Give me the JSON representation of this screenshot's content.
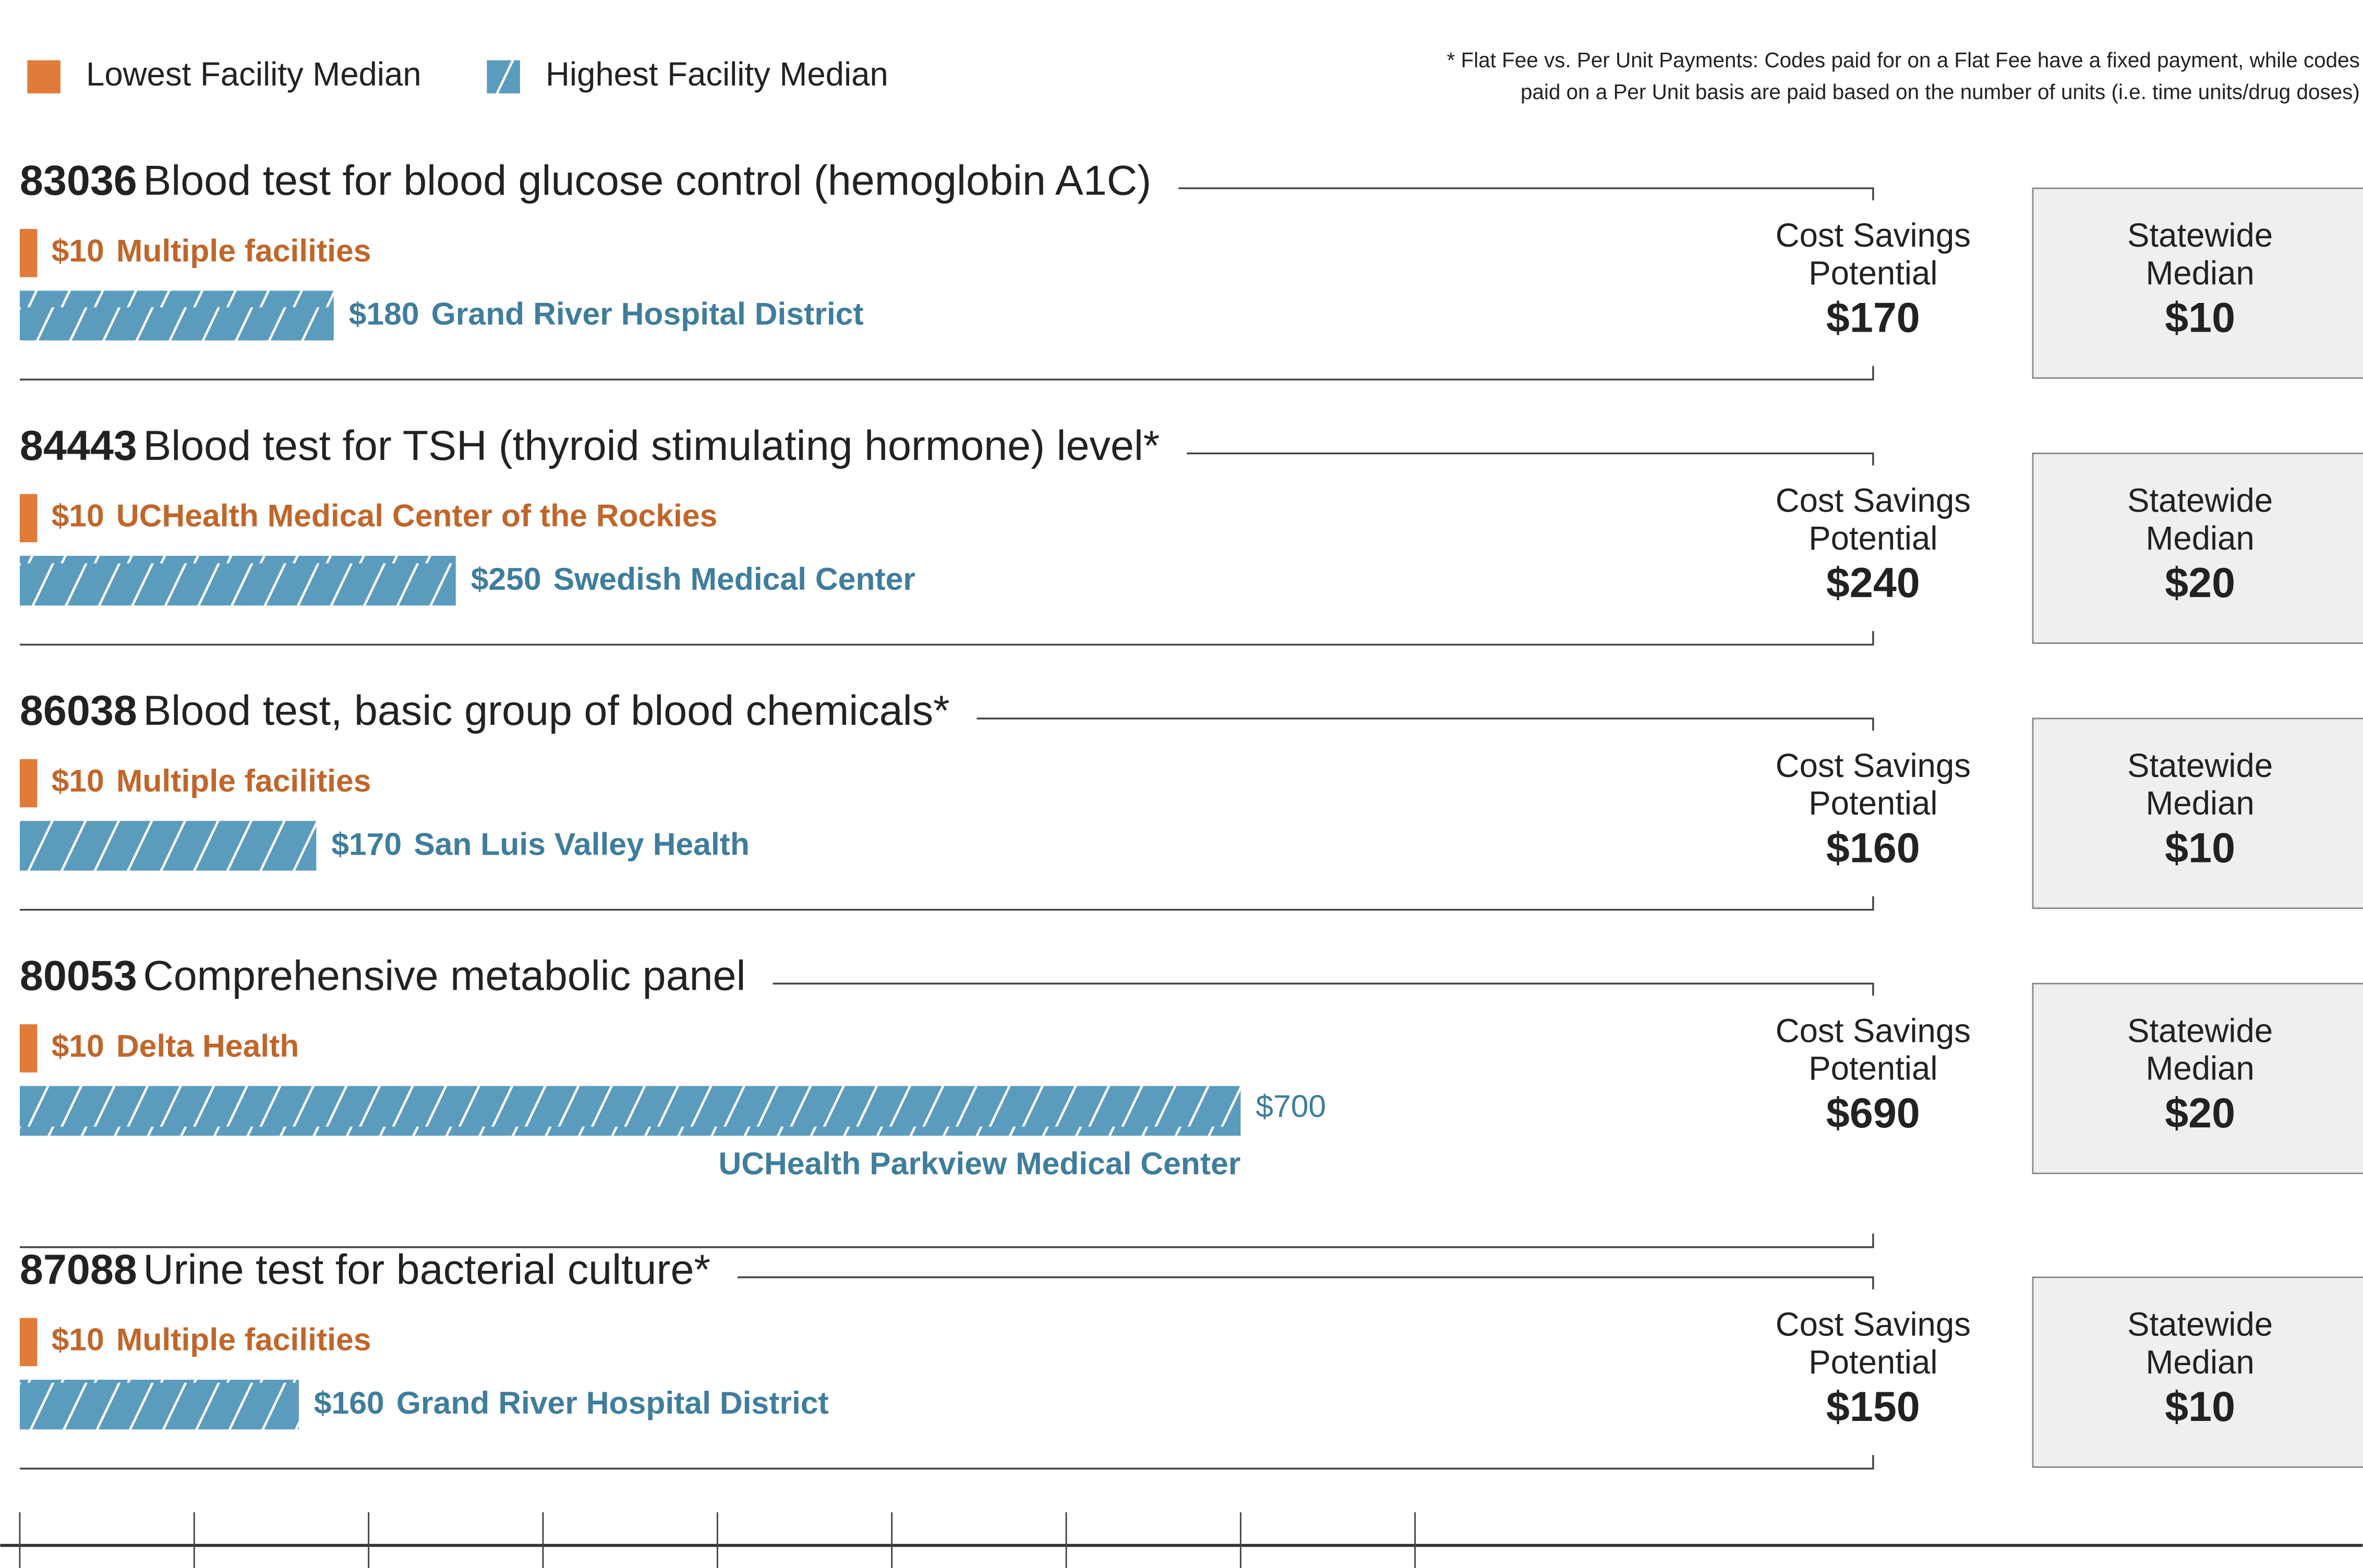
{
  "chart_data": {
    "type": "bar",
    "categories": [
      "83036",
      "84443",
      "86038",
      "80053",
      "87088"
    ],
    "descriptions": [
      "Blood test for blood glucose control (hemoglobin A1C)",
      "Blood test for TSH (thyroid stimulating hormone) level*",
      "Blood test, basic group of blood chemicals*",
      "Comprehensive metabolic panel",
      "Urine test for bacterial culture*"
    ],
    "series": [
      {
        "name": "Lowest Facility Median",
        "color": "#e07b39",
        "values": [
          10,
          10,
          10,
          10,
          10
        ],
        "value_labels": [
          "$10",
          "$10",
          "$10",
          "$10",
          "$10"
        ],
        "facilities": [
          "Multiple facilities",
          "UCHealth Medical Center of the Rockies",
          "Multiple facilities",
          "Delta Health",
          "Multiple facilities"
        ]
      },
      {
        "name": "Highest Facility Median",
        "color": "#5b9bbd",
        "hatched": true,
        "values": [
          180,
          250,
          170,
          700,
          160
        ],
        "value_labels": [
          "$180",
          "$250",
          "$170",
          "$700",
          "$160"
        ],
        "facilities": [
          "Grand River Hospital District",
          "Swedish Medical Center",
          "San Luis Valley Health",
          "UCHealth Parkview Medical Center",
          "Grand River Hospital District"
        ]
      }
    ],
    "savings": {
      "header": [
        "Cost Savings",
        "Potential"
      ],
      "values": [
        170,
        240,
        160,
        690,
        150
      ],
      "value_labels": [
        "$170",
        "$240",
        "$160",
        "$690",
        "$150"
      ]
    },
    "statewide": {
      "header": [
        "Statewide",
        "Median"
      ],
      "values": [
        10,
        20,
        10,
        20,
        10
      ],
      "value_labels": [
        "$10",
        "$20",
        "$10",
        "$20",
        "$10"
      ]
    },
    "footnote": [
      "* Flat Fee vs. Per Unit Payments: Codes paid for on a Flat Fee have a fixed payment, while codes",
      "paid on a Per Unit basis are paid based on the number of units (i.e. time units/drug doses)"
    ],
    "xlim": [
      0,
      800
    ],
    "xticks": [
      0,
      100,
      200,
      300,
      400,
      500,
      600,
      700,
      800
    ],
    "legend": "top-left"
  }
}
